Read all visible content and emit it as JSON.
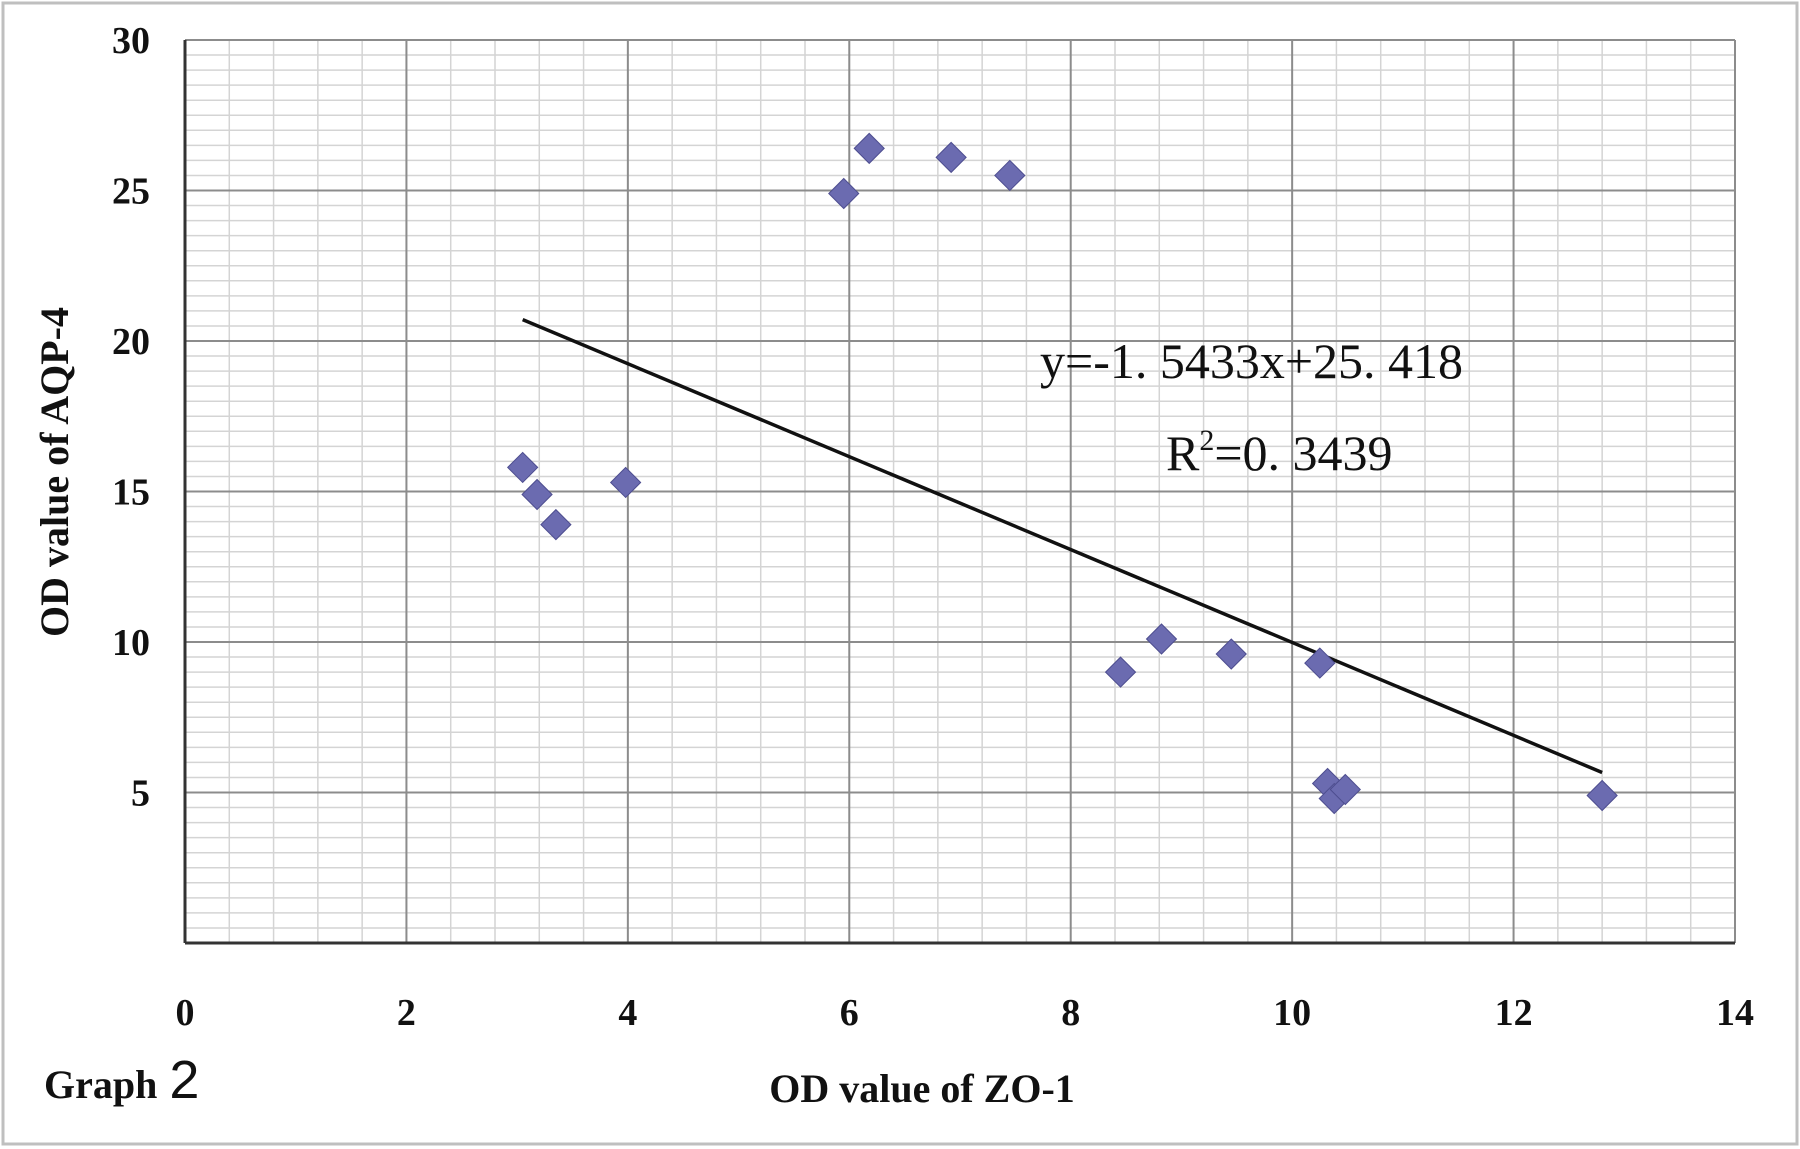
{
  "chart_data": {
    "type": "scatter",
    "title": "",
    "xlabel": "OD value of ZO-1",
    "ylabel": "OD value of AQP-4",
    "xlim": [
      0,
      14
    ],
    "ylim": [
      0,
      30
    ],
    "x_ticks": [
      0,
      2,
      4,
      6,
      8,
      10,
      12,
      14
    ],
    "y_ticks": [
      5,
      10,
      15,
      20,
      25,
      30
    ],
    "grid": true,
    "legend": "none",
    "marker_color": "#6B6BB0",
    "series": [
      {
        "name": "",
        "points": [
          {
            "x": 3.05,
            "y": 15.8
          },
          {
            "x": 3.18,
            "y": 14.9
          },
          {
            "x": 3.35,
            "y": 13.9
          },
          {
            "x": 3.98,
            "y": 15.3
          },
          {
            "x": 5.95,
            "y": 24.9
          },
          {
            "x": 6.18,
            "y": 26.4
          },
          {
            "x": 6.92,
            "y": 26.1
          },
          {
            "x": 7.45,
            "y": 25.5
          },
          {
            "x": 8.45,
            "y": 9.0
          },
          {
            "x": 8.82,
            "y": 10.1
          },
          {
            "x": 9.45,
            "y": 9.6
          },
          {
            "x": 10.25,
            "y": 9.3
          },
          {
            "x": 10.32,
            "y": 5.3
          },
          {
            "x": 10.38,
            "y": 4.8
          },
          {
            "x": 10.48,
            "y": 5.1
          },
          {
            "x": 12.8,
            "y": 4.9
          }
        ]
      }
    ],
    "trendline": {
      "x_range": [
        3.05,
        12.8
      ],
      "slope": -1.5433,
      "intercept": 25.418,
      "equation_label": "y=-1. 5433x+25. 418",
      "r2_prefix": "R",
      "r2_sup": "2",
      "r2_value": "=0. 3439"
    },
    "caption_word": "Graph",
    "caption_number": "2"
  }
}
